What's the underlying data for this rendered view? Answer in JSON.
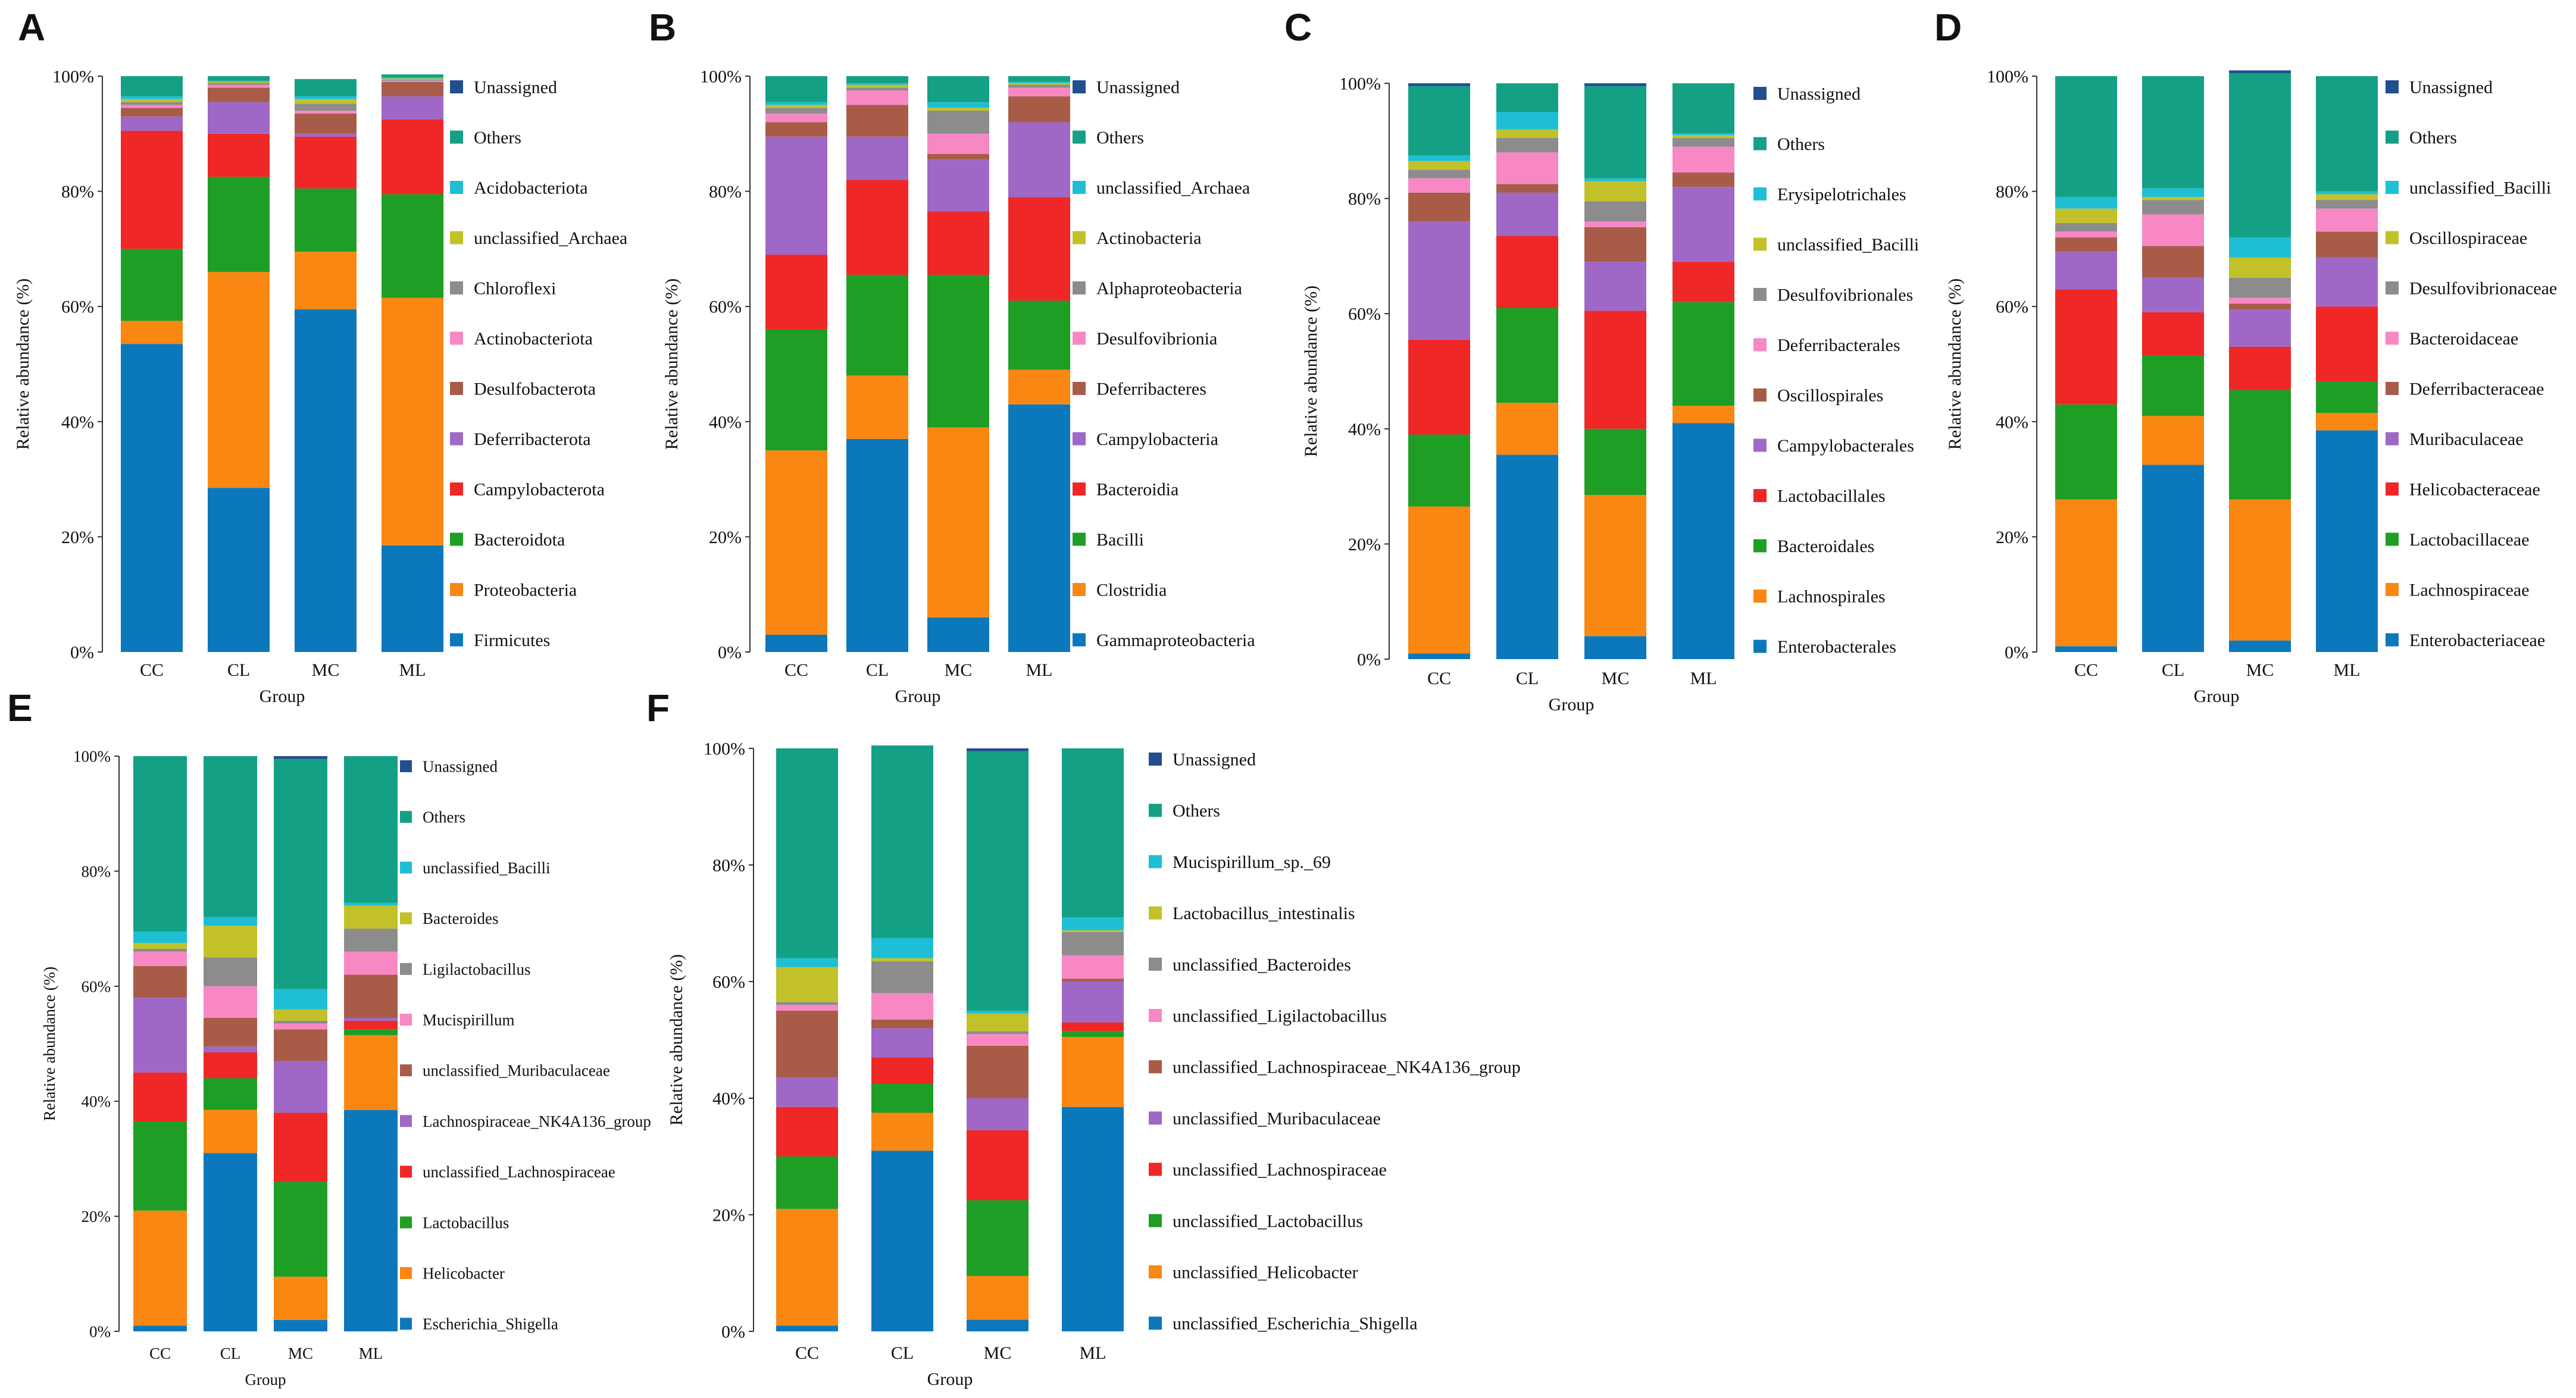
{
  "colors": {
    "Unassigned": "#214f8f",
    "Others": "#14a085",
    "s3": "#1ebfd4",
    "s4": "#c2c12a",
    "s5": "#8c8c8c",
    "s6": "#f788c4",
    "s7": "#a85c48",
    "s8": "#9f68c6",
    "s9": "#ef2727",
    "s10": "#1f9e25",
    "s11": "#f98712",
    "s12": "#0c78bc"
  },
  "chart_data": [
    {
      "panel": "A",
      "type": "bar",
      "stacked": true,
      "xlabel": "Group",
      "ylabel": "Relative abundance (%)",
      "ylim": [
        0,
        100
      ],
      "yticks": [
        "0%",
        "20%",
        "40%",
        "60%",
        "80%",
        "100%"
      ],
      "categories": [
        "CC",
        "CL",
        "MC",
        "ML"
      ],
      "series": [
        {
          "name": "Firmicutes",
          "values": [
            53.5,
            28.5,
            59.5,
            18.5
          ]
        },
        {
          "name": "Proteobacteria",
          "values": [
            4,
            37.5,
            10,
            43
          ]
        },
        {
          "name": "Bacteroidota",
          "values": [
            12.5,
            16.5,
            11,
            18
          ]
        },
        {
          "name": "Campylobacterota",
          "values": [
            20.5,
            7.5,
            9,
            13
          ]
        },
        {
          "name": "Deferribacterota",
          "values": [
            2.5,
            5.5,
            0.5,
            4
          ]
        },
        {
          "name": "Desulfobacterota",
          "values": [
            1.5,
            2.5,
            3.5,
            2.5
          ]
        },
        {
          "name": "Actinobacteriota",
          "values": [
            0.5,
            0.5,
            0.5,
            0.2
          ]
        },
        {
          "name": "Chloroflexi",
          "values": [
            0.5,
            0.3,
            1.2,
            0.2
          ]
        },
        {
          "name": "unclassified_Archaea",
          "values": [
            0.5,
            0.2,
            0.8,
            0.2
          ]
        },
        {
          "name": "Acidobacteriota",
          "values": [
            0.5,
            0.2,
            0.5,
            0.2
          ]
        },
        {
          "name": "Others",
          "values": [
            3.5,
            0.8,
            3,
            0.5
          ]
        },
        {
          "name": "Unassigned",
          "values": [
            0,
            0,
            0,
            0
          ]
        }
      ]
    },
    {
      "panel": "B",
      "type": "bar",
      "stacked": true,
      "xlabel": "Group",
      "ylabel": "Relative abundance (%)",
      "ylim": [
        0,
        100
      ],
      "yticks": [
        "0%",
        "20%",
        "40%",
        "60%",
        "80%",
        "100%"
      ],
      "categories": [
        "CC",
        "CL",
        "MC",
        "ML"
      ],
      "series": [
        {
          "name": "Gammaproteobacteria",
          "values": [
            3,
            37,
            6,
            43
          ]
        },
        {
          "name": "Clostridia",
          "values": [
            32,
            11,
            33,
            6
          ]
        },
        {
          "name": "Bacilli",
          "values": [
            21,
            17.5,
            26.5,
            12
          ]
        },
        {
          "name": "Bacteroidia",
          "values": [
            13,
            16.5,
            11,
            18
          ]
        },
        {
          "name": "Campylobacteria",
          "values": [
            20.5,
            7.5,
            9,
            13
          ]
        },
        {
          "name": "Deferribacteres",
          "values": [
            2.5,
            5.5,
            1,
            4.5
          ]
        },
        {
          "name": "Desulfovibrionia",
          "values": [
            1.5,
            2.5,
            3.5,
            1.5
          ]
        },
        {
          "name": "Alphaproteobacteria",
          "values": [
            1,
            0.5,
            4,
            0.5
          ]
        },
        {
          "name": "Actinobacteria",
          "values": [
            0.5,
            0.5,
            0.5,
            0.3
          ]
        },
        {
          "name": "unclassified_Archaea",
          "values": [
            0.5,
            0.3,
            1,
            0.2
          ]
        },
        {
          "name": "Others",
          "values": [
            4.5,
            1.2,
            4.5,
            1
          ]
        },
        {
          "name": "Unassigned",
          "values": [
            0,
            0,
            0,
            0
          ]
        }
      ]
    },
    {
      "panel": "C",
      "type": "bar",
      "stacked": true,
      "xlabel": "Group",
      "ylabel": "Relative abundance (%)",
      "ylim": [
        0,
        100
      ],
      "yticks": [
        "0%",
        "20%",
        "40%",
        "60%",
        "80%",
        "100%"
      ],
      "categories": [
        "CC",
        "CL",
        "MC",
        "ML"
      ],
      "series": [
        {
          "name": "Enterobacterales",
          "values": [
            1,
            35.5,
            4,
            41
          ]
        },
        {
          "name": "Lachnospirales",
          "values": [
            25.5,
            9,
            24.5,
            3
          ]
        },
        {
          "name": "Bacteroidales",
          "values": [
            12.5,
            16.5,
            11.5,
            18
          ]
        },
        {
          "name": "Lactobacillales",
          "values": [
            16.5,
            12.5,
            20.5,
            7
          ]
        },
        {
          "name": "Campylobacterales",
          "values": [
            20.5,
            7.5,
            8.5,
            13
          ]
        },
        {
          "name": "Oscillospirales",
          "values": [
            5,
            1.5,
            6,
            2.5
          ]
        },
        {
          "name": "Deferribacterales",
          "values": [
            2.5,
            5.5,
            1,
            4.5
          ]
        },
        {
          "name": "Desulfovibrionales",
          "values": [
            1.5,
            2.5,
            3.5,
            1.5
          ]
        },
        {
          "name": "unclassified_Bacilli",
          "values": [
            1.5,
            1.5,
            3.5,
            0.5
          ]
        },
        {
          "name": "Erysipelotrichales",
          "values": [
            1,
            3,
            0.5,
            0.3
          ]
        },
        {
          "name": "Others",
          "values": [
            12,
            5,
            16,
            8.7
          ]
        },
        {
          "name": "Unassigned",
          "values": [
            0.5,
            0,
            0.5,
            0
          ]
        }
      ]
    },
    {
      "panel": "D",
      "type": "bar",
      "stacked": true,
      "xlabel": "Group",
      "ylabel": "Relative abundance (%)",
      "ylim": [
        0,
        100
      ],
      "yticks": [
        "0%",
        "20%",
        "40%",
        "60%",
        "80%",
        "100%"
      ],
      "categories": [
        "CC",
        "CL",
        "MC",
        "ML"
      ],
      "series": [
        {
          "name": "Enterobacteriaceae",
          "values": [
            1,
            32.5,
            2,
            38.5
          ]
        },
        {
          "name": "Lachnospiraceae",
          "values": [
            25.5,
            8.5,
            24.5,
            3
          ]
        },
        {
          "name": "Lactobacillaceae",
          "values": [
            16.5,
            10.5,
            19,
            5.5
          ]
        },
        {
          "name": "Helicobacteraceae",
          "values": [
            20,
            7.5,
            7.5,
            13
          ]
        },
        {
          "name": "Muribaculaceae",
          "values": [
            6.5,
            6,
            6.5,
            8.5
          ]
        },
        {
          "name": "Deferribacteraceae",
          "values": [
            2.5,
            5.5,
            1,
            4.5
          ]
        },
        {
          "name": "Bacteroidaceae",
          "values": [
            1,
            5.5,
            1,
            4
          ]
        },
        {
          "name": "Desulfovibrionaceae",
          "values": [
            1.5,
            2.5,
            3.5,
            1.5
          ]
        },
        {
          "name": "Oscillospiraceae",
          "values": [
            2.5,
            0.5,
            3.5,
            1
          ]
        },
        {
          "name": "unclassified_Bacilli",
          "values": [
            2,
            1.5,
            3.5,
            0.5
          ]
        },
        {
          "name": "Others",
          "values": [
            21,
            19.5,
            28.5,
            20
          ]
        },
        {
          "name": "Unassigned",
          "values": [
            0,
            0,
            0.5,
            0
          ]
        }
      ]
    },
    {
      "panel": "E",
      "type": "bar",
      "stacked": true,
      "xlabel": "Group",
      "ylabel": "Relative abundance (%)",
      "ylim": [
        0,
        100
      ],
      "yticks": [
        "0%",
        "20%",
        "40%",
        "60%",
        "80%",
        "100%"
      ],
      "categories": [
        "CC",
        "CL",
        "MC",
        "ML"
      ],
      "series": [
        {
          "name": "Escherichia_Shigella",
          "values": [
            1,
            31,
            2,
            38.5
          ]
        },
        {
          "name": "Helicobacter",
          "values": [
            20,
            7.5,
            7.5,
            13
          ]
        },
        {
          "name": "Lactobacillus",
          "values": [
            15.5,
            5.5,
            16.5,
            1
          ]
        },
        {
          "name": "unclassified_Lachnospiraceae",
          "values": [
            8.5,
            4.5,
            12,
            1.5
          ]
        },
        {
          "name": "Lachnospiraceae_NK4A136_group",
          "values": [
            13,
            1,
            9,
            0.5
          ]
        },
        {
          "name": "unclassified_Muribaculaceae",
          "values": [
            5.5,
            5,
            5.5,
            7.5
          ]
        },
        {
          "name": "Mucispirillum",
          "values": [
            2.5,
            5.5,
            1,
            4
          ]
        },
        {
          "name": "Ligilactobacillus",
          "values": [
            0.5,
            5,
            0.5,
            4
          ]
        },
        {
          "name": "Bacteroides",
          "values": [
            1,
            5.5,
            2,
            4
          ]
        },
        {
          "name": "unclassified_Bacilli",
          "values": [
            2,
            1.5,
            3.5,
            0.5
          ]
        },
        {
          "name": "Others",
          "values": [
            30.5,
            28,
            40,
            25.5
          ]
        },
        {
          "name": "Unassigned",
          "values": [
            0,
            0,
            0.5,
            0
          ]
        }
      ]
    },
    {
      "panel": "F",
      "type": "bar",
      "stacked": true,
      "xlabel": "Group",
      "ylabel": "Relative abundance (%)",
      "ylim": [
        0,
        100
      ],
      "yticks": [
        "0%",
        "20%",
        "40%",
        "60%",
        "80%",
        "100%"
      ],
      "categories": [
        "CC",
        "CL",
        "MC",
        "ML"
      ],
      "series": [
        {
          "name": "unclassified_Escherichia_Shigella",
          "values": [
            1,
            31,
            2,
            38.5
          ]
        },
        {
          "name": "unclassified_Helicobacter",
          "values": [
            20,
            6.5,
            7.5,
            12
          ]
        },
        {
          "name": "unclassified_Lactobacillus",
          "values": [
            9,
            5,
            13,
            1
          ]
        },
        {
          "name": "unclassified_Lachnospiraceae",
          "values": [
            8.5,
            4.5,
            12,
            1.5
          ]
        },
        {
          "name": "unclassified_Muribaculaceae",
          "values": [
            5,
            5,
            5.5,
            7
          ]
        },
        {
          "name": "unclassified_Lachnospiraceae_NK4A136_group",
          "values": [
            11.5,
            1.5,
            9,
            0.5
          ]
        },
        {
          "name": "unclassified_Ligilactobacillus",
          "values": [
            1,
            4.5,
            2,
            4
          ]
        },
        {
          "name": "unclassified_Bacteroides",
          "values": [
            0.5,
            5.5,
            0.5,
            4
          ]
        },
        {
          "name": "Lactobacillus_intestinalis",
          "values": [
            6,
            0.5,
            3,
            0.3
          ]
        },
        {
          "name": "Mucispirillum_sp._69",
          "values": [
            1.5,
            3.5,
            0.5,
            2.2
          ]
        },
        {
          "name": "Others",
          "values": [
            36,
            33,
            44.5,
            29
          ]
        },
        {
          "name": "Unassigned",
          "values": [
            0,
            0,
            0.5,
            0
          ]
        }
      ]
    }
  ]
}
